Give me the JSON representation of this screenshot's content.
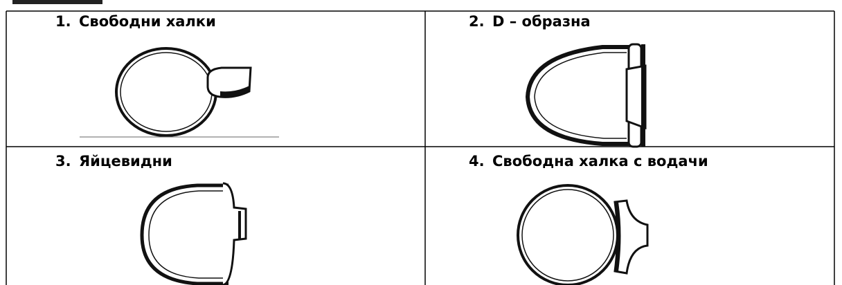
{
  "table": {
    "cells": [
      {
        "number": "1.",
        "label": "Свободни халки"
      },
      {
        "number": "2.",
        "label": "D – образна"
      },
      {
        "number": "3.",
        "label": "Яйцевидни"
      },
      {
        "number": "4.",
        "label": "Свободна халка с водачи"
      }
    ]
  }
}
